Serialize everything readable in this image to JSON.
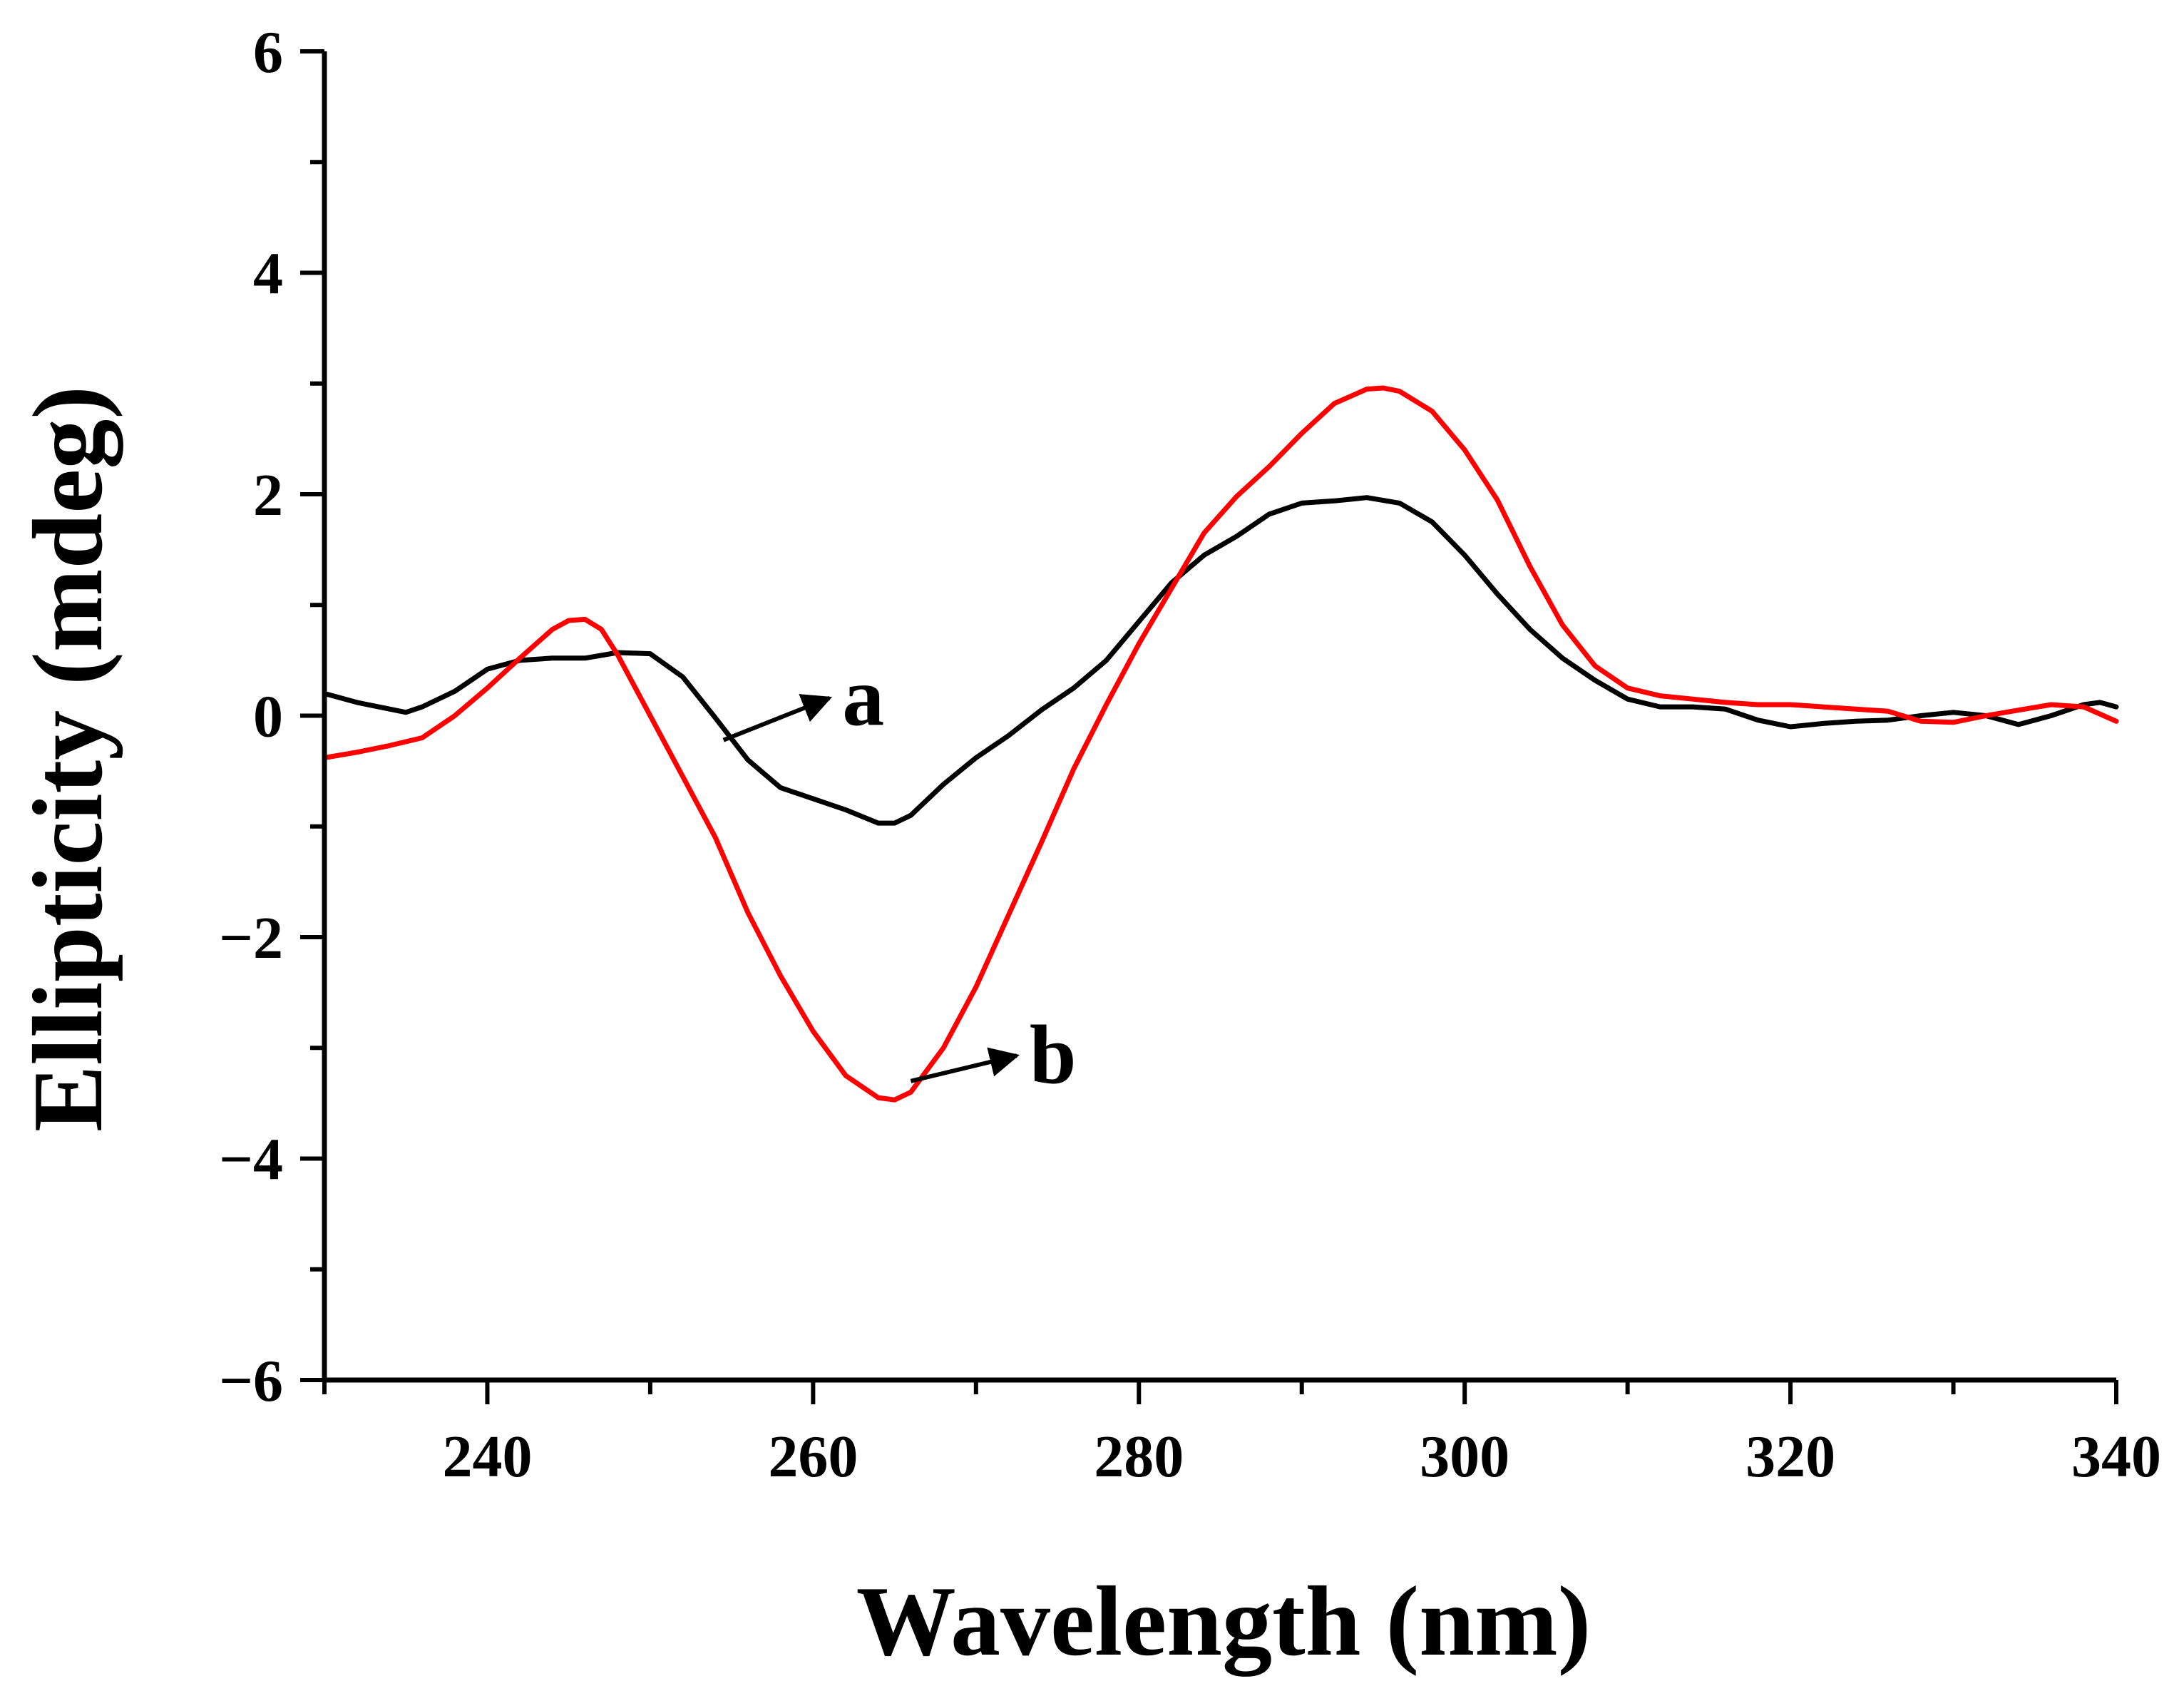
{
  "chart_data": {
    "type": "line",
    "title": "",
    "xlabel": "Wavelength (nm)",
    "ylabel": "Ellipticity (mdeg)",
    "xlim": [
      230,
      340
    ],
    "ylim": [
      -6,
      6
    ],
    "x_ticks": [
      240,
      260,
      280,
      300,
      320,
      340
    ],
    "y_ticks": [
      6,
      4,
      2,
      0,
      -2,
      -4,
      -6
    ],
    "y_tick_labels": [
      "6",
      "4",
      "2",
      "0",
      "−2",
      "−4",
      "−6"
    ],
    "grid": false,
    "series": [
      {
        "name": "a",
        "color": "#000000",
        "x": [
          230,
          232,
          234,
          235,
          236,
          238,
          240,
          242,
          244,
          246,
          248,
          250,
          252,
          254,
          256,
          258,
          260,
          262,
          264,
          265,
          266,
          268,
          270,
          272,
          274,
          276,
          278,
          280,
          282,
          284,
          286,
          288,
          290,
          292,
          294,
          296,
          298,
          300,
          302,
          304,
          306,
          308,
          310,
          312,
          314,
          316,
          318,
          320,
          322,
          324,
          326,
          328,
          330,
          332,
          334,
          336,
          338,
          339,
          340
        ],
        "y": [
          0.2,
          0.12,
          0.06,
          0.03,
          0.08,
          0.22,
          0.42,
          0.5,
          0.52,
          0.52,
          0.57,
          0.56,
          0.35,
          -0.02,
          -0.4,
          -0.65,
          -0.75,
          -0.85,
          -0.97,
          -0.97,
          -0.9,
          -0.62,
          -0.38,
          -0.18,
          0.05,
          0.25,
          0.5,
          0.85,
          1.2,
          1.45,
          1.62,
          1.82,
          1.92,
          1.94,
          1.97,
          1.92,
          1.75,
          1.45,
          1.1,
          0.78,
          0.52,
          0.32,
          0.15,
          0.08,
          0.08,
          0.06,
          -0.04,
          -0.1,
          -0.07,
          -0.05,
          -0.04,
          0.0,
          0.03,
          0.0,
          -0.08,
          0.0,
          0.1,
          0.12,
          0.08
        ]
      },
      {
        "name": "b",
        "color": "#ff0000",
        "x": [
          230,
          232,
          234,
          236,
          238,
          240,
          242,
          244,
          245,
          246,
          247,
          248,
          250,
          252,
          254,
          256,
          258,
          260,
          262,
          264,
          265,
          266,
          268,
          270,
          272,
          274,
          276,
          278,
          280,
          282,
          284,
          286,
          288,
          290,
          292,
          294,
          295,
          296,
          298,
          300,
          302,
          304,
          306,
          308,
          310,
          312,
          314,
          316,
          318,
          320,
          322,
          324,
          326,
          328,
          330,
          332,
          334,
          336,
          338,
          340
        ],
        "y": [
          -0.38,
          -0.33,
          -0.27,
          -0.2,
          0.0,
          0.25,
          0.52,
          0.78,
          0.86,
          0.87,
          0.78,
          0.55,
          0.0,
          -0.55,
          -1.1,
          -1.78,
          -2.35,
          -2.85,
          -3.25,
          -3.45,
          -3.47,
          -3.4,
          -3.0,
          -2.45,
          -1.8,
          -1.15,
          -0.48,
          0.1,
          0.65,
          1.15,
          1.65,
          1.98,
          2.25,
          2.55,
          2.82,
          2.95,
          2.96,
          2.93,
          2.75,
          2.4,
          1.95,
          1.35,
          0.82,
          0.45,
          0.25,
          0.18,
          0.15,
          0.12,
          0.1,
          0.1,
          0.08,
          0.06,
          0.04,
          -0.05,
          -0.06,
          0.0,
          0.05,
          0.1,
          0.08,
          -0.05
        ]
      }
    ],
    "annotations": [
      {
        "text": "a",
        "series": "a",
        "arrow_from": [
          254.5,
          -0.22
        ],
        "arrow_to": [
          261,
          0.16
        ]
      },
      {
        "text": "b",
        "series": "b",
        "arrow_from": [
          266,
          -3.3
        ],
        "arrow_to": [
          272.5,
          -3.07
        ]
      }
    ]
  }
}
